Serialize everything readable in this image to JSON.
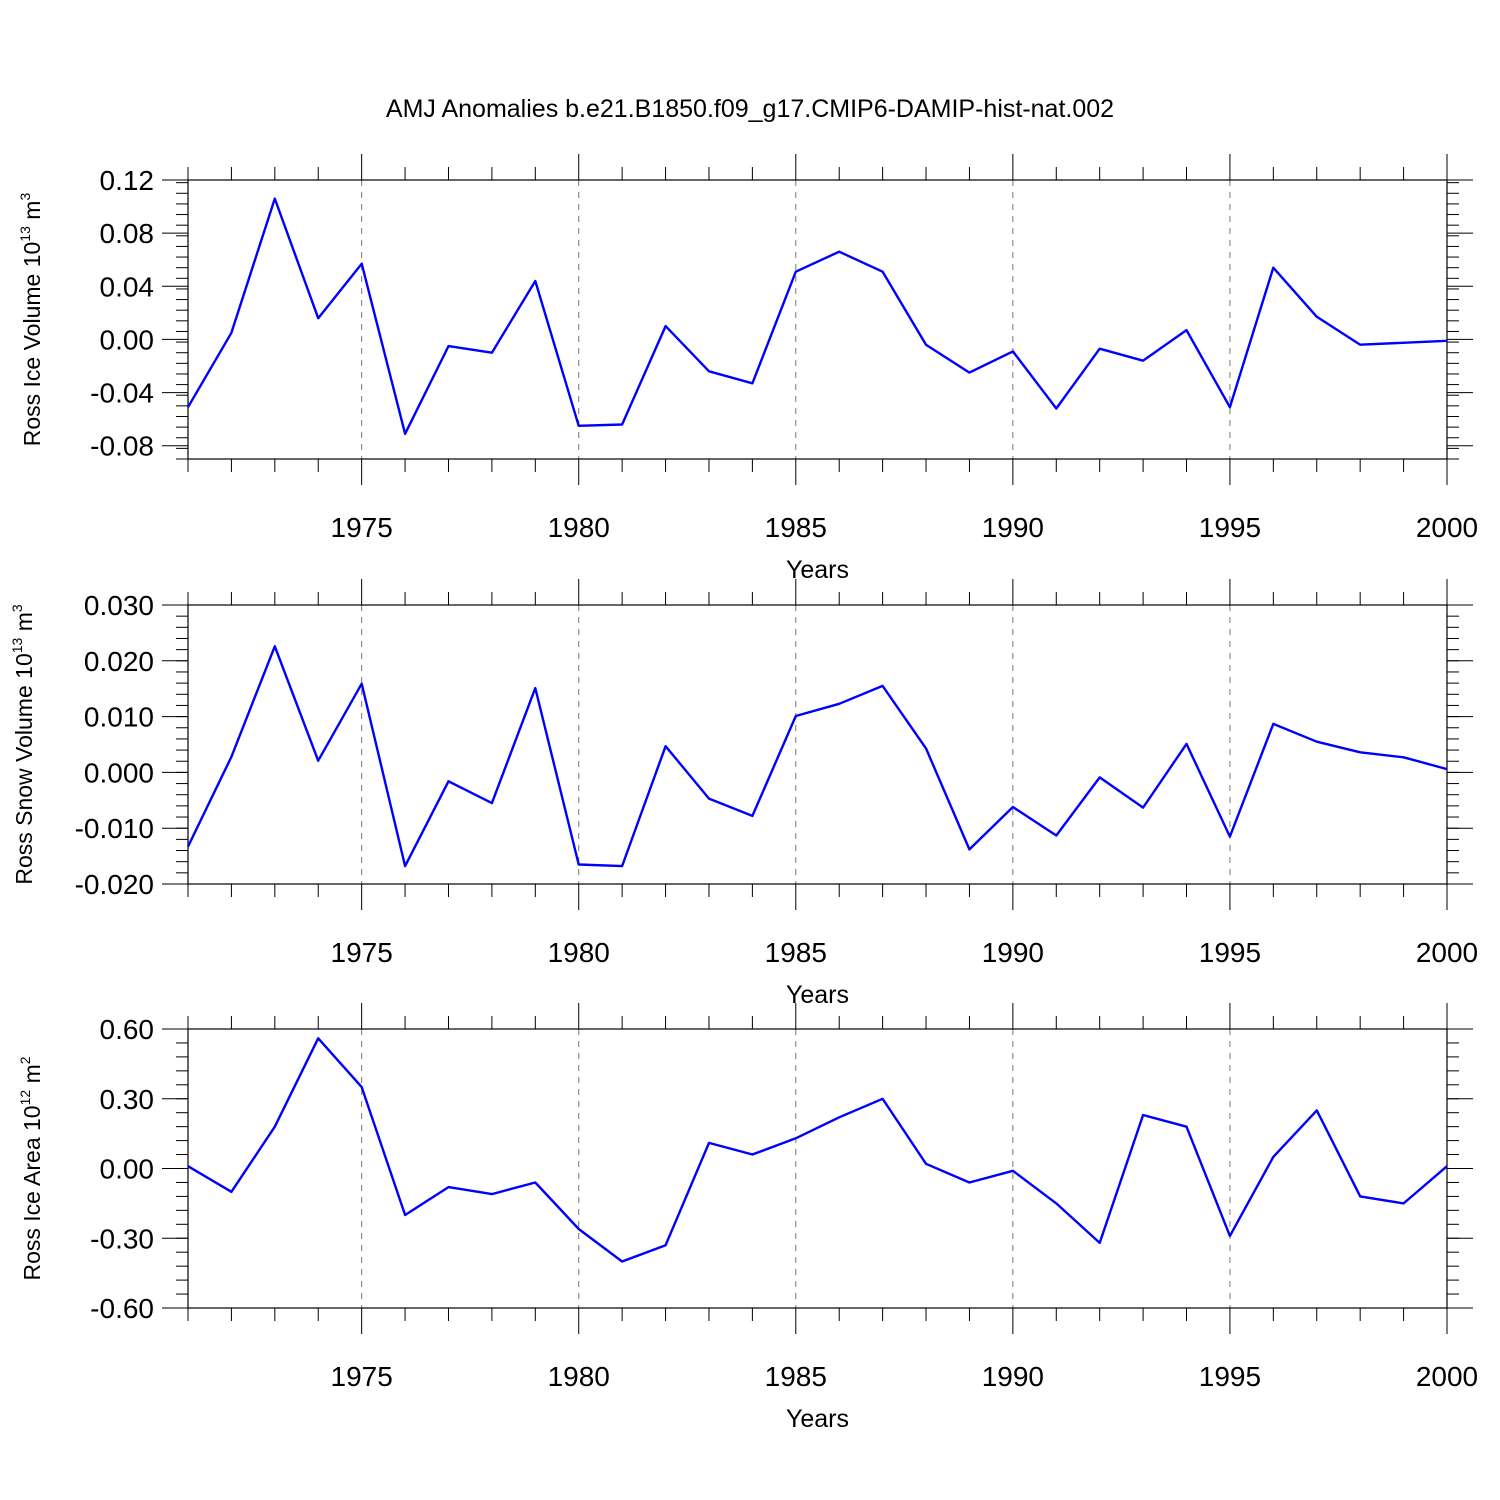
{
  "title": "AMJ Anomalies b.e21.B1850.f09_g17.CMIP6-DAMIP-hist-nat.002",
  "line_color": "#0000ff",
  "chart_data": [
    {
      "type": "line",
      "title": "",
      "xlabel": "Years",
      "ylabel": "Ross Ice Volume 10",
      "ylabel_exp": "13",
      "ylabel_unit": "m",
      "ylabel_unit_exp": "3",
      "xlim": [
        1971,
        2000
      ],
      "ylim": [
        -0.09,
        0.12
      ],
      "yticks": [
        "0.12",
        "0.08",
        "0.04",
        "0.00",
        "-0.04",
        "-0.08"
      ],
      "yticks_values": [
        0.12,
        0.08,
        0.04,
        0.0,
        -0.04,
        -0.08
      ],
      "xticks": [
        "1975",
        "1980",
        "1985",
        "1990",
        "1995",
        "2000"
      ],
      "xticks_values": [
        1975,
        1980,
        1985,
        1990,
        1995,
        2000
      ],
      "grid": "vertical dashed at major x ticks",
      "series": [
        {
          "x": [
            1971,
            1972,
            1973,
            1974,
            1975,
            1976,
            1977,
            1978,
            1979,
            1980,
            1981,
            1982,
            1983,
            1984,
            1985,
            1986,
            1987,
            1988,
            1989,
            1990,
            1991,
            1992,
            1993,
            1994,
            1995,
            1996,
            1997,
            1998,
            2000
          ],
          "values": [
            -0.051,
            0.005,
            0.106,
            0.016,
            0.057,
            -0.071,
            -0.005,
            -0.01,
            0.044,
            -0.065,
            -0.064,
            0.01,
            -0.024,
            -0.033,
            0.051,
            0.066,
            0.051,
            -0.004,
            -0.025,
            -0.009,
            -0.052,
            -0.007,
            -0.016,
            0.007,
            -0.051,
            0.054,
            0.017,
            -0.004,
            -0.001
          ]
        }
      ]
    },
    {
      "type": "line",
      "title": "",
      "xlabel": "Years",
      "ylabel": "Ross Snow Volume 10",
      "ylabel_exp": "13",
      "ylabel_unit": "m",
      "ylabel_unit_exp": "3",
      "xlim": [
        1971,
        2000
      ],
      "ylim": [
        -0.02,
        0.03
      ],
      "yticks": [
        "0.030",
        "0.020",
        "0.010",
        "0.000",
        "-0.010",
        "-0.020"
      ],
      "yticks_values": [
        0.03,
        0.02,
        0.01,
        0.0,
        -0.01,
        -0.02
      ],
      "xticks": [
        "1975",
        "1980",
        "1985",
        "1990",
        "1995",
        "2000"
      ],
      "xticks_values": [
        1975,
        1980,
        1985,
        1990,
        1995,
        2000
      ],
      "grid": "vertical dashed at major x ticks",
      "series": [
        {
          "x": [
            1971,
            1972,
            1973,
            1974,
            1975,
            1976,
            1977,
            1978,
            1979,
            1980,
            1981,
            1982,
            1983,
            1984,
            1985,
            1986,
            1987,
            1988,
            1989,
            1990,
            1991,
            1992,
            1993,
            1994,
            1995,
            1996,
            1997,
            1998,
            1999,
            2000
          ],
          "values": [
            -0.0133,
            0.0028,
            0.0226,
            0.0021,
            0.0159,
            -0.0168,
            -0.0016,
            -0.0055,
            0.0151,
            -0.0165,
            -0.0168,
            0.0047,
            -0.0047,
            -0.0078,
            0.0101,
            0.0123,
            0.0155,
            0.0043,
            -0.0138,
            -0.0062,
            -0.0113,
            -0.0009,
            -0.0063,
            0.0051,
            -0.0115,
            0.0087,
            0.0055,
            0.0036,
            0.0027,
            0.0006
          ]
        }
      ]
    },
    {
      "type": "line",
      "title": "",
      "xlabel": "Years",
      "ylabel": "Ross Ice Area 10",
      "ylabel_exp": "12",
      "ylabel_unit": "m",
      "ylabel_unit_exp": "2",
      "xlim": [
        1971,
        2000
      ],
      "ylim": [
        -0.6,
        0.6
      ],
      "yticks": [
        "0.60",
        "0.30",
        "0.00",
        "-0.30",
        "-0.60"
      ],
      "yticks_values": [
        0.6,
        0.3,
        0.0,
        -0.3,
        -0.6
      ],
      "xticks": [
        "1975",
        "1980",
        "1985",
        "1990",
        "1995",
        "2000"
      ],
      "xticks_values": [
        1975,
        1980,
        1985,
        1990,
        1995,
        2000
      ],
      "grid": "vertical dashed at major x ticks",
      "series": [
        {
          "x": [
            1971,
            1972,
            1973,
            1974,
            1975,
            1976,
            1977,
            1978,
            1979,
            1980,
            1981,
            1982,
            1983,
            1984,
            1985,
            1986,
            1987,
            1988,
            1989,
            1990,
            1991,
            1992,
            1993,
            1994,
            1995,
            1996,
            1997,
            1998,
            1999,
            2000
          ],
          "values": [
            0.01,
            -0.1,
            0.18,
            0.56,
            0.35,
            -0.2,
            -0.08,
            -0.11,
            -0.06,
            -0.26,
            -0.4,
            -0.33,
            0.11,
            0.06,
            0.13,
            0.22,
            0.3,
            0.02,
            -0.06,
            -0.01,
            -0.15,
            -0.32,
            0.23,
            0.18,
            -0.29,
            0.05,
            0.25,
            -0.12,
            -0.15,
            0.01
          ]
        }
      ]
    }
  ]
}
